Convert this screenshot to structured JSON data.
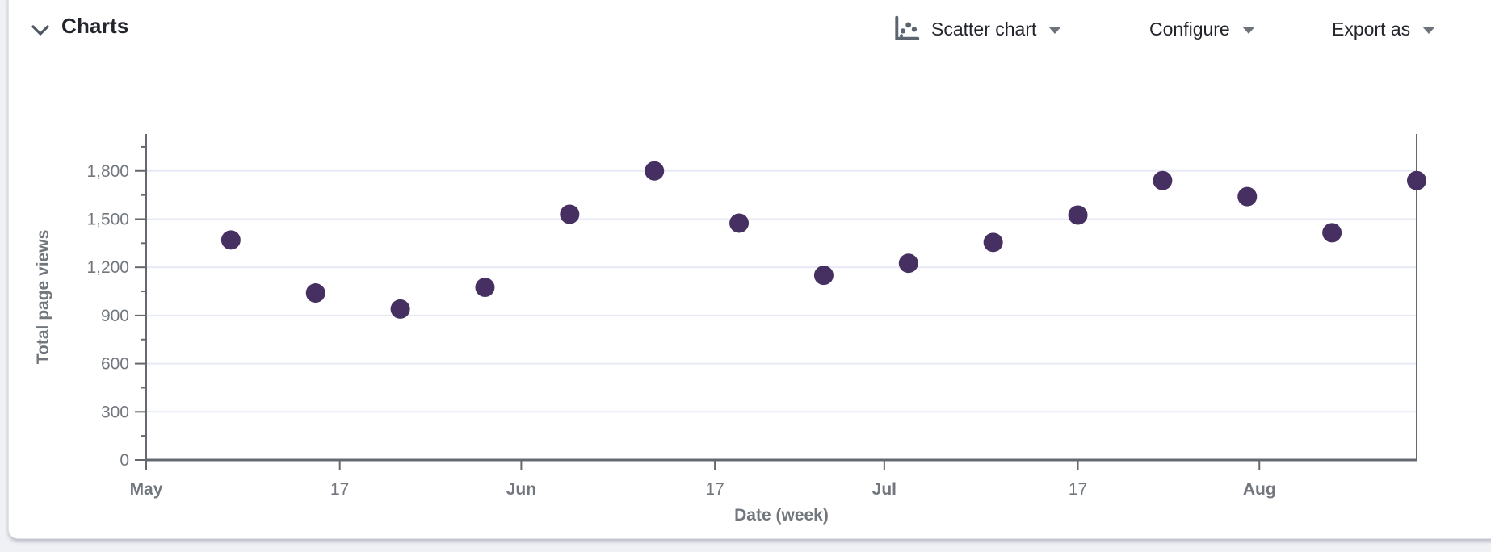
{
  "header": {
    "title": "Charts"
  },
  "toolbar": {
    "chart_type_label": "Scatter chart",
    "configure_label": "Configure",
    "export_label": "Export as"
  },
  "chart_data": {
    "type": "scatter",
    "title": "",
    "xlabel": "Date (week)",
    "ylabel": "Total page views",
    "x_range_days": [
      0,
      105
    ],
    "x_ticks": [
      {
        "day": 0,
        "label": "May",
        "bold": true
      },
      {
        "day": 16,
        "label": "17",
        "bold": false
      },
      {
        "day": 31,
        "label": "Jun",
        "bold": true
      },
      {
        "day": 47,
        "label": "17",
        "bold": false
      },
      {
        "day": 61,
        "label": "Jul",
        "bold": true
      },
      {
        "day": 77,
        "label": "17",
        "bold": false
      },
      {
        "day": 92,
        "label": "Aug",
        "bold": true
      }
    ],
    "ylim": [
      0,
      2030
    ],
    "yticks": [
      0,
      300,
      600,
      900,
      1200,
      1500,
      1800
    ],
    "y_minor_ticks": [
      150,
      450,
      750,
      1050,
      1350,
      1650,
      1950
    ],
    "grid": true,
    "legend": "none",
    "points": [
      {
        "day": 7,
        "value": 1370
      },
      {
        "day": 14,
        "value": 1040
      },
      {
        "day": 21,
        "value": 940
      },
      {
        "day": 28,
        "value": 1075
      },
      {
        "day": 35,
        "value": 1530
      },
      {
        "day": 42,
        "value": 1800
      },
      {
        "day": 49,
        "value": 1475
      },
      {
        "day": 56,
        "value": 1150
      },
      {
        "day": 63,
        "value": 1225
      },
      {
        "day": 70,
        "value": 1355
      },
      {
        "day": 77,
        "value": 1525
      },
      {
        "day": 84,
        "value": 1740
      },
      {
        "day": 91,
        "value": 1640
      },
      {
        "day": 98,
        "value": 1415
      },
      {
        "day": 105,
        "value": 1740
      }
    ],
    "colors": {
      "point": "#463061",
      "grid": "#e7eaf4",
      "axis": "#64686f",
      "tick_label": "#72777e"
    }
  }
}
